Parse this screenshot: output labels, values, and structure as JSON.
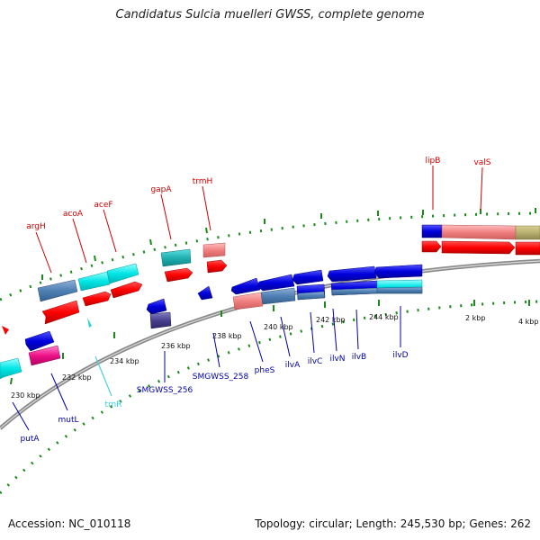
{
  "title": "Candidatus Sulcia muelleri GWSS, complete genome",
  "footer": {
    "accession": "Accession: NC_010118",
    "topology": "Topology: circular; Length: 245,530 bp; Genes: 262"
  },
  "colors": {
    "forward_gene": "#ff0000",
    "reverse_gene": "#0000dd",
    "trna": "#33ccdd",
    "tick": "#1a8a1a",
    "backbone": "#888888"
  },
  "scale_labels": [
    "230 kbp",
    "232 kbp",
    "234 kbp",
    "236 kbp",
    "238 kbp",
    "240 kbp",
    "242 kbp",
    "244 kbp",
    "2 kbp",
    "4 kbp"
  ],
  "forward_labels": [
    "argH",
    "acoA",
    "aceF",
    "gapA",
    "trmH",
    "lipB",
    "valS"
  ],
  "reverse_labels": [
    "putA",
    "mutL",
    "trnR",
    "SMGWSS_256",
    "SMGWSS_258",
    "pheS",
    "ilvA",
    "ilvC",
    "ilvN",
    "ilvB",
    "ilvD"
  ]
}
